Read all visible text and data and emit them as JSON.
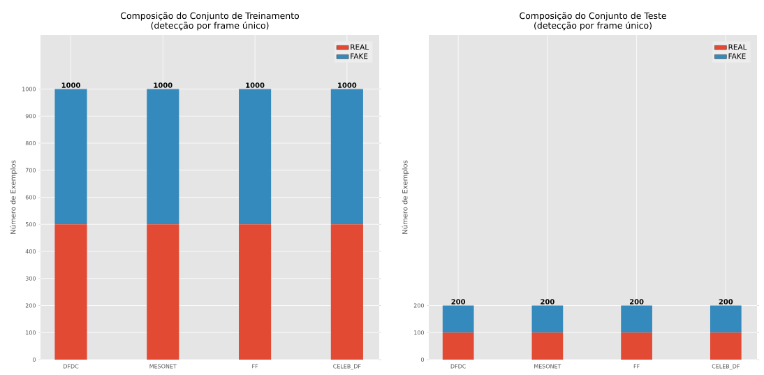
{
  "chart_data": [
    {
      "type": "bar",
      "stacked": true,
      "title": "Composição do Conjunto de Treinamento",
      "subtitle": "(detecção por frame único)",
      "ylabel": "Número de Exemplos",
      "categories": [
        "DFDC",
        "MESONET",
        "FF",
        "CELEB_DF"
      ],
      "series": [
        {
          "name": "REAL",
          "color": "#e24a33",
          "values": [
            500,
            500,
            500,
            500
          ]
        },
        {
          "name": "FAKE",
          "color": "#348abd",
          "values": [
            500,
            500,
            500,
            500
          ]
        }
      ],
      "totals": [
        "1000",
        "1000",
        "1000",
        "1000"
      ],
      "ylim": [
        0,
        1200
      ],
      "yticks": [
        0,
        100,
        200,
        300,
        400,
        500,
        600,
        700,
        800,
        900,
        1000
      ],
      "grid": true,
      "legend": "top right"
    },
    {
      "type": "bar",
      "stacked": true,
      "title": "Composição do Conjunto de Teste",
      "subtitle": "(detecção por frame único)",
      "ylabel": "Número de Exemplos",
      "categories": [
        "DFDC",
        "MESONET",
        "FF",
        "CELEB_DF"
      ],
      "series": [
        {
          "name": "REAL",
          "color": "#e24a33",
          "values": [
            100,
            100,
            100,
            100
          ]
        },
        {
          "name": "FAKE",
          "color": "#348abd",
          "values": [
            100,
            100,
            100,
            100
          ]
        }
      ],
      "totals": [
        "200",
        "200",
        "200",
        "200"
      ],
      "ylim": [
        0,
        1200
      ],
      "yticks": [
        0,
        100,
        200
      ],
      "grid": true,
      "legend": "top right"
    }
  ]
}
